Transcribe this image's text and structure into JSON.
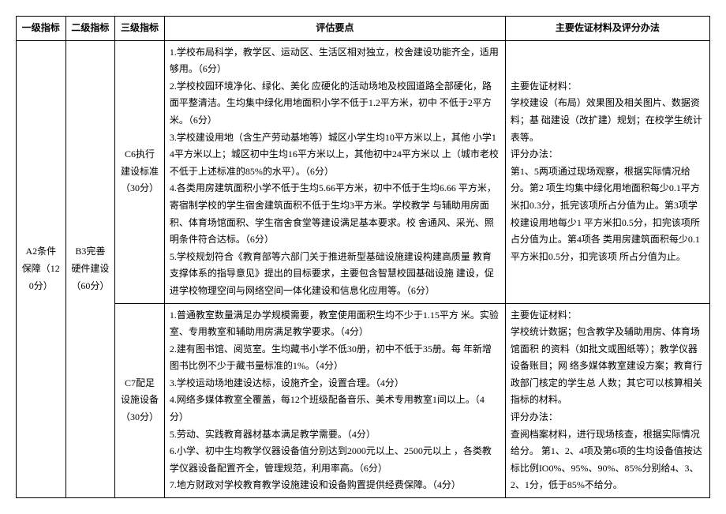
{
  "headers": {
    "c1": "一级指标",
    "c2": "二级指标",
    "c3": "三级指标",
    "c4": "评估要点",
    "c5": "主要佐证材料及评分办法"
  },
  "rows": {
    "a2": "A2条件保障（120分）",
    "b3": "B3完善硬件建设（60分）",
    "c6": "C6执行建设标准（30分）",
    "c6_points": "1.学校布局科学，教学区、运动区、生活区相对独立，校舍建设功能齐全，适用够用。（6分）\n2.学校校园环境净化、绿化、美化 应硬化的活动场地及校园道路全部硬化，路面平整清洁。生均集中绿化用地面积小学不低于1.2平方米，初中 不低于2平方米。（6分）\n3.学校建设用地（含生产劳动基地等）城区小学生均10平方米以上，其他 小学14平方米以上；城区初中生均16平方米以上，其他初中24平方米以 上（城市老校不低于上述标准的85%的水平）。（6分）\n4.各类用房建筑面积小学不低于生均5.66平方米，初中不低于生均6.66 平方米，寄宿制学校的学生宿舍建筑面积不低于生均3平方米。学校教学 与辅助用房面积、体育场馆面积、学生宿舍食堂等建设满足基本要求。校 舍通风、采光、照明条件符合达标。（6分）\n5.学校规划符合《教育部等六部门关于推进新型基础设施建设构建高质量 教育支撑体系的指导意见》提出的目标要求，主要包含智慧校园基础设施 建设，促进学校物理空间与网络空间一体化建设和信息化应用等。（6分）",
    "c6_evidence": "主要佐证材料：\n学校建设（布局）效果图及相关图片、数据资料；基 础建设（改扩建）规划；在校学生统计表等。\n评分办法：\n第1、5两项通过现场观察，根据实际情况给分。第2 项生均集中绿化用地面积每少0.1平方米扣0.3分，抵完该项所占分值为止。第3项学校建设用地每少1 平方米扣0.5分，扣完该项所占分值为止。第4项各 类用房建筑面积每少0.1平方米扣0.5分，扣完该项 所占分值为止。",
    "c7": "C7配足设施设备（30分）",
    "c7_points": "1.普通教室数量满足办学规模需要，教室使用面积生均不少于1.15平方 米。实验室、专用教室和辅助用房满足教学要求。（4分）\n2.建有图书馆、阅览室。生均藏书小学不低30册，初中不低于35册。每 年新增图书比例不少于藏书量标准的1%。（4分）\n3.学校运动场地建设达标，设施齐全，设置合理。（4分）\n4.网络多媒体教室全覆盖，每12个班级配备音乐、美术专用教室1间以上。（4分）\n5.劳动、实践教育器材基本满足教学需要。（4分）\n6.小学、初中生均教学仪器设备值分别达到2000元以上、2500元以上 ，各类教学仪器设备配置齐全，管理规范，利用率高。（6分）\n7.地方财政对学校教育教学设施建设和设备购置提供经费保障。（4分）",
    "c7_evidence": "主要佐证材料：\n学校统计数据；包含教学及辅助用房、体育场馆面积 的资料（如批文或图纸等）；教学仪器设备账目；网 络多媒体教室建设方案；教育行政部门核定的学生总 人数；其它可以核算相关指标的材料。\n评分办法：\n查阅档案材料，进行现场核查，根据实际情况给分。 第1、2、4项及第6项的生均设备值按达标比例IO0%、95%、90%、85%分别给4、3、2、1分，低于85%不给分。"
  }
}
